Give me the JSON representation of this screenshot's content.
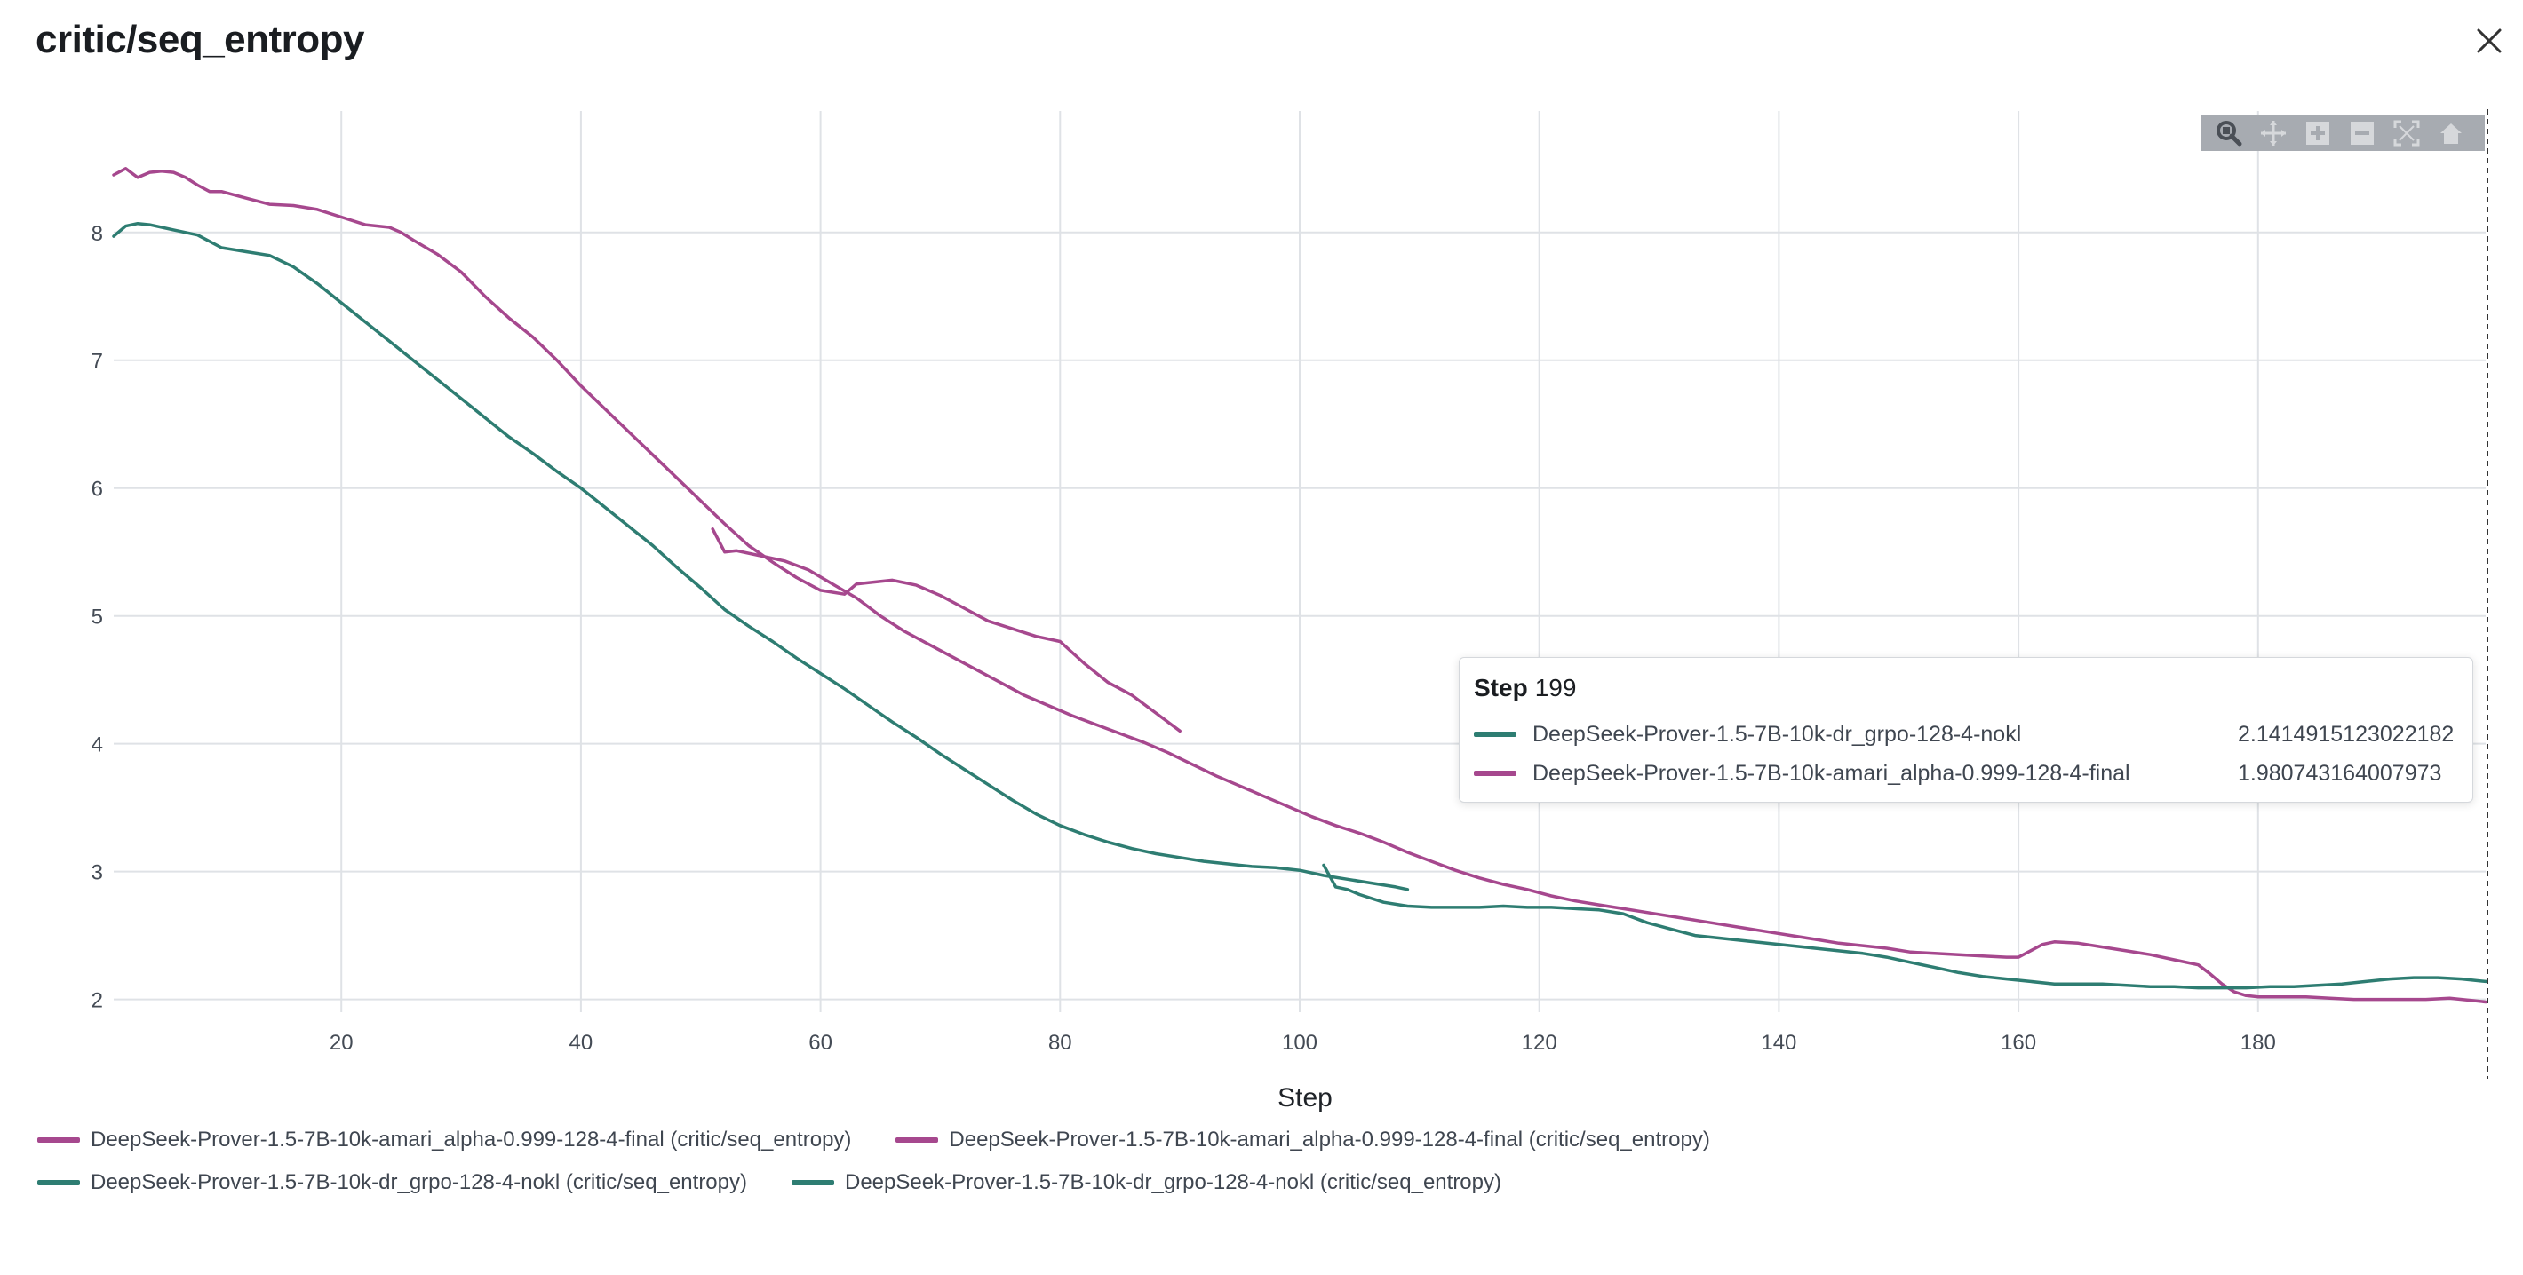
{
  "page": {
    "title": "critic/seq_entropy",
    "close_label": "Close"
  },
  "colors": {
    "magenta": "#a6488e",
    "teal": "#2e7d72",
    "grid": "#dfe2e6",
    "modebar": "#a7abb1"
  },
  "modebar": {
    "buttons": [
      "zoom-icon",
      "pan-icon",
      "zoom-in-icon",
      "zoom-out-icon",
      "autoscale-icon",
      "reset-axes-icon"
    ]
  },
  "tooltip": {
    "step_label": "Step",
    "step_value": "199",
    "rows": [
      {
        "name": "DeepSeek-Prover-1.5-7B-10k-dr_grpo-128-4-nokl",
        "value": "2.1414915123022182",
        "color": "#2e7d72"
      },
      {
        "name": "DeepSeek-Prover-1.5-7B-10k-amari_alpha-0.999-128-4-final",
        "value": "1.980743164007973",
        "color": "#a6488e"
      }
    ]
  },
  "legend": {
    "items": [
      {
        "label": "DeepSeek-Prover-1.5-7B-10k-amari_alpha-0.999-128-4-final (critic/seq_entropy)",
        "color": "#a6488e"
      },
      {
        "label": "DeepSeek-Prover-1.5-7B-10k-amari_alpha-0.999-128-4-final (critic/seq_entropy)",
        "color": "#a6488e"
      },
      {
        "label": "DeepSeek-Prover-1.5-7B-10k-dr_grpo-128-4-nokl (critic/seq_entropy)",
        "color": "#2e7d72"
      },
      {
        "label": "DeepSeek-Prover-1.5-7B-10k-dr_grpo-128-4-nokl (critic/seq_entropy)",
        "color": "#2e7d72"
      }
    ]
  },
  "chart_data": {
    "type": "line",
    "title": "critic/seq_entropy",
    "xlabel": "Step",
    "ylabel": "",
    "xlim": [
      1,
      199
    ],
    "ylim": [
      1.9,
      8.95
    ],
    "xticks": [
      20,
      40,
      60,
      80,
      100,
      120,
      140,
      160,
      180
    ],
    "yticks": [
      2,
      3,
      4,
      5,
      6,
      7,
      8
    ],
    "grid": true,
    "hover_step": 199,
    "series": [
      {
        "name": "DeepSeek-Prover-1.5-7B-10k-amari_alpha-0.999-128-4-final (critic/seq_entropy)",
        "color": "#a6488e",
        "x": [
          1,
          2,
          3,
          4,
          5,
          6,
          7,
          8,
          9,
          10,
          12,
          14,
          16,
          18,
          20,
          22,
          24,
          25,
          26,
          28,
          30,
          32,
          34,
          36,
          38,
          40,
          42,
          44,
          46,
          48,
          50,
          52,
          54,
          56,
          58,
          60,
          62,
          63,
          64,
          66,
          68,
          70,
          72,
          74,
          76,
          78,
          80,
          82,
          84,
          86,
          88,
          90
        ],
        "y": [
          8.45,
          8.5,
          8.43,
          8.47,
          8.48,
          8.47,
          8.43,
          8.37,
          8.32,
          8.32,
          8.27,
          8.22,
          8.21,
          8.18,
          8.12,
          8.06,
          8.04,
          8.0,
          7.94,
          7.83,
          7.69,
          7.5,
          7.33,
          7.18,
          7.0,
          6.8,
          6.62,
          6.44,
          6.26,
          6.08,
          5.9,
          5.72,
          5.55,
          5.42,
          5.3,
          5.2,
          5.17,
          5.25,
          5.26,
          5.28,
          5.24,
          5.16,
          5.06,
          4.96,
          4.9,
          4.84,
          4.8,
          4.63,
          4.48,
          4.38,
          4.24,
          4.1
        ]
      },
      {
        "name": "DeepSeek-Prover-1.5-7B-10k-amari_alpha-0.999-128-4-final (critic/seq_entropy)",
        "color": "#a6488e",
        "x": [
          51,
          52,
          53,
          55,
          57,
          59,
          61,
          63,
          65,
          67,
          69,
          71,
          73,
          75,
          77,
          79,
          81,
          83,
          85,
          87,
          89,
          91,
          93,
          95,
          97,
          99,
          101,
          103,
          105,
          107,
          109,
          111,
          113,
          115,
          117,
          119,
          121,
          123,
          125,
          127,
          129,
          131,
          133,
          135,
          137,
          139,
          141,
          143,
          145,
          147,
          149,
          151,
          153,
          155,
          157,
          159,
          160,
          161,
          162,
          163,
          165,
          167,
          169,
          171,
          173,
          175,
          176,
          177,
          178,
          179,
          180,
          182,
          184,
          186,
          188,
          190,
          192,
          194,
          196,
          198,
          199
        ],
        "y": [
          5.68,
          5.5,
          5.51,
          5.47,
          5.43,
          5.36,
          5.25,
          5.14,
          5.0,
          4.88,
          4.78,
          4.68,
          4.58,
          4.48,
          4.38,
          4.3,
          4.22,
          4.15,
          4.08,
          4.01,
          3.93,
          3.84,
          3.75,
          3.67,
          3.59,
          3.51,
          3.43,
          3.36,
          3.3,
          3.23,
          3.15,
          3.08,
          3.01,
          2.95,
          2.9,
          2.86,
          2.81,
          2.77,
          2.74,
          2.71,
          2.68,
          2.65,
          2.62,
          2.59,
          2.56,
          2.53,
          2.5,
          2.47,
          2.44,
          2.42,
          2.4,
          2.37,
          2.36,
          2.35,
          2.34,
          2.33,
          2.33,
          2.38,
          2.43,
          2.45,
          2.44,
          2.41,
          2.38,
          2.35,
          2.31,
          2.27,
          2.2,
          2.12,
          2.06,
          2.03,
          2.02,
          2.02,
          2.02,
          2.01,
          2.0,
          2.0,
          2.0,
          2.0,
          2.01,
          1.99,
          1.98
        ]
      },
      {
        "name": "DeepSeek-Prover-1.5-7B-10k-dr_grpo-128-4-nokl (critic/seq_entropy)",
        "color": "#2e7d72",
        "x": [
          1,
          2,
          3,
          4,
          6,
          8,
          10,
          12,
          14,
          16,
          18,
          20,
          22,
          24,
          26,
          28,
          30,
          32,
          34,
          36,
          38,
          40,
          42,
          44,
          46,
          48,
          50,
          52,
          54,
          56,
          58,
          60,
          62,
          64,
          66,
          68,
          70,
          72,
          74,
          76,
          78,
          80,
          82,
          84,
          86,
          88,
          90,
          92,
          94,
          96,
          98,
          100,
          102,
          104,
          106,
          108,
          109
        ],
        "y": [
          7.97,
          8.05,
          8.07,
          8.06,
          8.02,
          7.98,
          7.88,
          7.85,
          7.82,
          7.73,
          7.6,
          7.45,
          7.3,
          7.15,
          7.0,
          6.85,
          6.7,
          6.55,
          6.4,
          6.27,
          6.13,
          6.0,
          5.85,
          5.7,
          5.55,
          5.38,
          5.22,
          5.05,
          4.92,
          4.8,
          4.67,
          4.55,
          4.43,
          4.3,
          4.17,
          4.05,
          3.92,
          3.8,
          3.68,
          3.56,
          3.45,
          3.36,
          3.29,
          3.23,
          3.18,
          3.14,
          3.11,
          3.08,
          3.06,
          3.04,
          3.03,
          3.01,
          2.97,
          2.94,
          2.91,
          2.88,
          2.86
        ]
      },
      {
        "name": "DeepSeek-Prover-1.5-7B-10k-dr_grpo-128-4-nokl (critic/seq_entropy)",
        "color": "#2e7d72",
        "x": [
          102,
          103,
          104,
          105,
          107,
          109,
          111,
          113,
          115,
          117,
          119,
          121,
          123,
          125,
          127,
          129,
          131,
          133,
          135,
          137,
          139,
          141,
          143,
          145,
          147,
          149,
          151,
          153,
          155,
          157,
          159,
          161,
          163,
          165,
          167,
          169,
          171,
          173,
          175,
          177,
          179,
          181,
          183,
          185,
          187,
          189,
          191,
          193,
          195,
          197,
          199
        ],
        "y": [
          3.05,
          2.88,
          2.86,
          2.82,
          2.76,
          2.73,
          2.72,
          2.72,
          2.72,
          2.73,
          2.72,
          2.72,
          2.71,
          2.7,
          2.67,
          2.6,
          2.55,
          2.5,
          2.48,
          2.46,
          2.44,
          2.42,
          2.4,
          2.38,
          2.36,
          2.33,
          2.29,
          2.25,
          2.21,
          2.18,
          2.16,
          2.14,
          2.12,
          2.12,
          2.12,
          2.11,
          2.1,
          2.1,
          2.09,
          2.09,
          2.09,
          2.1,
          2.1,
          2.11,
          2.12,
          2.14,
          2.16,
          2.17,
          2.17,
          2.16,
          2.14
        ]
      }
    ]
  }
}
